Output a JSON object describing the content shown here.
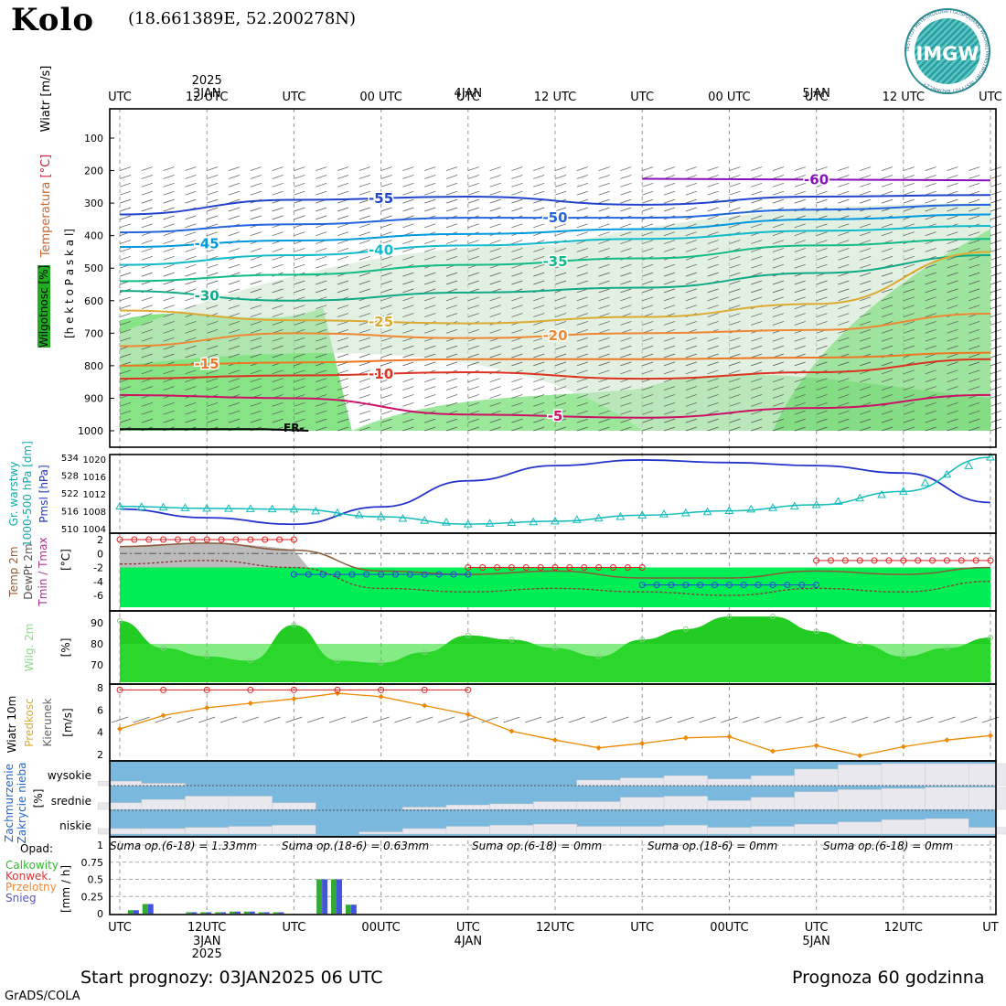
{
  "header": {
    "station": "Kolo",
    "coords": "(18.661389E, 52.200278N)",
    "logo_text": "IMGW",
    "logo_ring_text": "INSTYTUT METEOROLOGII I GOSPODARKI WODNEJ PAŃSTWOWY INSTYTUT BADAWCZY"
  },
  "time_axis": {
    "top_labels": [
      "UTC",
      "12 UTC",
      "UTC",
      "00 UTC",
      "UTC",
      "12 UTC",
      "UTC",
      "00 UTC",
      "UTC",
      "12 UTC",
      "UTC"
    ],
    "bottom_labels": [
      "UTC",
      "12UTC",
      "UTC",
      "00UTC",
      "UTC",
      "12UTC",
      "UTC",
      "00UTC",
      "UTC",
      "12UTC",
      "UT"
    ],
    "dates_top": [
      {
        "lines": [
          "2025",
          "3JAN"
        ]
      },
      {
        "lines": [
          "4JAN"
        ]
      },
      {
        "lines": [
          "5JAN"
        ]
      }
    ],
    "dates_bottom": [
      {
        "lines": [
          "3JAN",
          "2025"
        ]
      },
      {
        "lines": [
          "4JAN"
        ]
      },
      {
        "lines": [
          "5JAN"
        ]
      }
    ]
  },
  "panel_labels": {
    "upper_wind": "Wiatr [m/s]",
    "upper_temp_word": "Temperatura",
    "upper_temp_unit": "[°C]",
    "upper_hum": "Wilgotnosc [%]",
    "upper_pressure": "[h e k t o P a s k a l]",
    "thick_1": "Gr. warstwy",
    "thick_2": "1000-500 hPa [dm]",
    "pmsl": "Pmsl [hPa]",
    "temp_1": "Temp 2m",
    "temp_2": "DewPt 2m",
    "temp_3": "Tmin / Tmax",
    "temp_unit": "[°C]",
    "hum_word": "Wilg. 2m",
    "hum_unit": "[%]",
    "wind_word": "Wiatr 10m",
    "wind_speed": "Predkosc",
    "wind_dir": "Kierunek",
    "wind_unit": "[m/s]",
    "cloud_1": "Zachmurzenie",
    "cloud_2": "Zakrycie nieba",
    "cloud_unit": "[%]",
    "cloud_levels": [
      "wysokie",
      "srednie",
      "niskie"
    ],
    "precip_title": "Opad:",
    "precip_legend": [
      "Calkowity",
      "Konwek.",
      "Przelotny",
      "Snieg"
    ],
    "precip_unit": "[mm / h]",
    "fr_label": "FR-"
  },
  "colors": {
    "frame": "#000000",
    "grid": "#999999",
    "humidity_fill": "#22cc22",
    "thickness": "#11bbbb",
    "pmsl": "#2233cc",
    "tmax": "#dd2222",
    "tmin": "#2244dd",
    "temp_fill": "#00ee55",
    "wind_speed": "#ee8800",
    "cloud_fill": "#7ab8dd",
    "cloud_pale": "#e8e8ee",
    "precip_total": "#33aa33",
    "precip_snow": "#4455dd"
  },
  "chart_data": [
    {
      "type": "line",
      "name": "upper-air",
      "pressure_ticks": [
        100,
        200,
        300,
        400,
        500,
        600,
        700,
        800,
        900,
        1000
      ],
      "isotherm_labels": [
        "-55",
        "-50",
        "-45",
        "-40",
        "-35",
        "-30",
        "-25",
        "-20",
        "-15",
        "-10",
        "-5",
        "-60"
      ],
      "isotherms": [
        {
          "label": "-60",
          "color": "#8811bb",
          "hours": [
            36,
            60
          ],
          "p": [
            225,
            230
          ]
        },
        {
          "label": "-55",
          "color": "#2244cc",
          "hours": [
            0,
            12,
            24,
            36,
            48,
            60
          ],
          "p": [
            335,
            290,
            280,
            305,
            280,
            275
          ]
        },
        {
          "label": "-50",
          "color": "#2266dd",
          "hours": [
            0,
            12,
            24,
            36,
            48,
            60
          ],
          "p": [
            390,
            365,
            345,
            345,
            320,
            305
          ]
        },
        {
          "label": "-45",
          "color": "#0099dd",
          "hours": [
            0,
            12,
            24,
            36,
            48,
            60
          ],
          "p": [
            435,
            415,
            395,
            380,
            350,
            335
          ]
        },
        {
          "label": "-40",
          "color": "#11bbcc",
          "hours": [
            0,
            12,
            24,
            36,
            48,
            60
          ],
          "p": [
            490,
            460,
            430,
            410,
            385,
            370
          ]
        },
        {
          "label": "-35",
          "color": "#11bb88",
          "hours": [
            0,
            12,
            24,
            36,
            48,
            60
          ],
          "p": [
            540,
            520,
            490,
            470,
            430,
            410
          ]
        },
        {
          "label": "-30",
          "color": "#11aa88",
          "hours": [
            0,
            12,
            24,
            36,
            48,
            60
          ],
          "p": [
            570,
            600,
            575,
            560,
            515,
            460
          ]
        },
        {
          "label": "-25",
          "color": "#ddaa33",
          "hours": [
            0,
            12,
            24,
            36,
            48,
            60
          ],
          "p": [
            630,
            660,
            670,
            650,
            610,
            450
          ]
        },
        {
          "label": "-20",
          "color": "#ee8833",
          "hours": [
            0,
            12,
            24,
            36,
            48,
            60
          ],
          "p": [
            740,
            700,
            715,
            700,
            690,
            640
          ]
        },
        {
          "label": "-15",
          "color": "#ee7722",
          "hours": [
            0,
            12,
            24,
            36,
            48,
            60
          ],
          "p": [
            800,
            790,
            780,
            780,
            775,
            760
          ]
        },
        {
          "label": "-10",
          "color": "#dd3322",
          "hours": [
            0,
            12,
            24,
            36,
            48,
            60
          ],
          "p": [
            840,
            830,
            820,
            840,
            820,
            780
          ]
        },
        {
          "label": "-5",
          "color": "#cc1166",
          "hours": [
            0,
            12,
            24,
            36,
            48,
            60
          ],
          "p": [
            890,
            900,
            950,
            960,
            930,
            890
          ]
        }
      ]
    },
    {
      "type": "line",
      "name": "thickness-pmsl",
      "thickness_ticks": [
        510,
        516,
        522,
        528,
        534
      ],
      "pmsl_ticks": [
        1004,
        1008,
        1012,
        1016,
        1020
      ],
      "hours": [
        0,
        6,
        12,
        18,
        24,
        30,
        36,
        42,
        48,
        54,
        60
      ],
      "series": [
        {
          "name": "Gr. warstwy",
          "axis": "thickness",
          "values": [
            517.5,
            516.8,
            516.5,
            514.0,
            511.5,
            512.5,
            514.5,
            516.0,
            518.0,
            522.5,
            534.0
          ]
        },
        {
          "name": "Pmsl",
          "axis": "pmsl",
          "values": [
            1008.5,
            1006.5,
            1005.0,
            1009.0,
            1015.0,
            1018.5,
            1019.8,
            1019.2,
            1018.5,
            1016.8,
            1010.0
          ]
        }
      ]
    },
    {
      "type": "line",
      "name": "temperature-2m",
      "y_ticks": [
        2,
        0,
        -2,
        -4,
        -6
      ],
      "hours": [
        0,
        6,
        12,
        18,
        24,
        30,
        36,
        42,
        48,
        54,
        60
      ],
      "series": [
        {
          "name": "Temp 2m",
          "values": [
            1.0,
            1.5,
            0.5,
            -2.5,
            -3.0,
            -2.5,
            -3.5,
            -3.5,
            -2.5,
            -3.0,
            -2.0
          ]
        },
        {
          "name": "DewPt 2m",
          "values": [
            -1.5,
            -1.0,
            -2.0,
            -5.0,
            -5.5,
            -5.0,
            -5.5,
            -6.0,
            -5.0,
            -5.5,
            -4.0
          ]
        },
        {
          "name": "Tmax",
          "hours": [
            0,
            12,
            24,
            36,
            48,
            60
          ],
          "values": [
            2,
            2,
            -2,
            -2,
            -1,
            -1
          ]
        },
        {
          "name": "Tmin",
          "hours": [
            12,
            24,
            36,
            48
          ],
          "values": [
            -3,
            -3,
            -4.5,
            -4.5
          ]
        }
      ]
    },
    {
      "type": "area",
      "name": "humidity-2m",
      "y_ticks": [
        90,
        80,
        70
      ],
      "hours": [
        0,
        3,
        6,
        9,
        12,
        15,
        18,
        21,
        24,
        27,
        30,
        33,
        36,
        39,
        42,
        45,
        48,
        51,
        54,
        57,
        60
      ],
      "values": [
        91,
        78,
        74,
        72,
        89,
        72,
        71,
        76,
        84,
        82,
        78,
        74,
        82,
        87,
        93,
        93,
        86,
        80,
        74,
        78,
        83
      ]
    },
    {
      "type": "line",
      "name": "wind-10m",
      "y_ticks": [
        8,
        6,
        4,
        2
      ],
      "hours": [
        0,
        3,
        6,
        9,
        12,
        15,
        18,
        21,
        24,
        27,
        30,
        33,
        36,
        39,
        42,
        45,
        48,
        51,
        54,
        57,
        60
      ],
      "series": [
        {
          "name": "Predkosc",
          "values": [
            4.3,
            5.5,
            6.2,
            6.6,
            7.0,
            7.5,
            7.2,
            6.4,
            5.6,
            4.1,
            3.3,
            2.6,
            3.0,
            3.5,
            3.6,
            2.3,
            2.8,
            1.9,
            2.7,
            3.3,
            3.7
          ]
        },
        {
          "name": "Porywy",
          "hours": [
            0,
            3,
            6,
            9,
            12,
            15,
            18,
            21,
            24
          ],
          "values": [
            7.8,
            7.8,
            7.8,
            7.8,
            7.8,
            7.8,
            7.8,
            7.8,
            7.8
          ]
        }
      ]
    },
    {
      "type": "bar",
      "name": "cloud-cover",
      "hours": [
        0,
        3,
        6,
        9,
        12,
        15,
        18,
        21,
        24,
        27,
        30,
        33,
        36,
        39,
        42,
        45,
        48,
        51,
        54,
        57,
        60
      ],
      "series": [
        {
          "name": "wysokie",
          "values": [
            20,
            10,
            0,
            0,
            0,
            0,
            0,
            0,
            0,
            0,
            0,
            25,
            35,
            45,
            30,
            45,
            75,
            95,
            100,
            100,
            100
          ]
        },
        {
          "name": "srednie",
          "values": [
            30,
            45,
            60,
            60,
            30,
            0,
            0,
            10,
            20,
            25,
            35,
            35,
            55,
            60,
            40,
            55,
            80,
            90,
            95,
            100,
            100
          ]
        },
        {
          "name": "niskie",
          "values": [
            25,
            25,
            30,
            35,
            40,
            0,
            10,
            25,
            35,
            40,
            45,
            35,
            35,
            40,
            30,
            35,
            45,
            55,
            65,
            70,
            30
          ]
        }
      ]
    },
    {
      "type": "bar",
      "name": "precipitation",
      "y_ticks": [
        1,
        0.75,
        0.5,
        0.25,
        0
      ],
      "period_sums": [
        "Suma op.(6-18) = 1.33mm",
        "Suma op.(18-6) = 0.63mm",
        "Suma op.(6-18) = 0mm",
        "Suma op.(18-6) = 0mm",
        "Suma op.(6-18) = 0mm"
      ],
      "hours": [
        1,
        2,
        3,
        5,
        6,
        7,
        8,
        9,
        10,
        11,
        14,
        15,
        16,
        17
      ],
      "series": [
        {
          "name": "Calkowity",
          "values": [
            0.05,
            0.14,
            0.0,
            0.02,
            0.02,
            0.02,
            0.03,
            0.03,
            0.02,
            0.02,
            0.5,
            0.5,
            0.13,
            0.0
          ]
        },
        {
          "name": "Snieg",
          "values": [
            0.05,
            0.14,
            0.0,
            0.02,
            0.02,
            0.02,
            0.03,
            0.03,
            0.02,
            0.02,
            0.5,
            0.5,
            0.13,
            0.0
          ]
        }
      ]
    }
  ],
  "footer": {
    "start": "Start prognozy: 03JAN2025 06 UTC",
    "forecast": "Prognoza 60 godzinna",
    "credit": "GrADS/COLA"
  }
}
